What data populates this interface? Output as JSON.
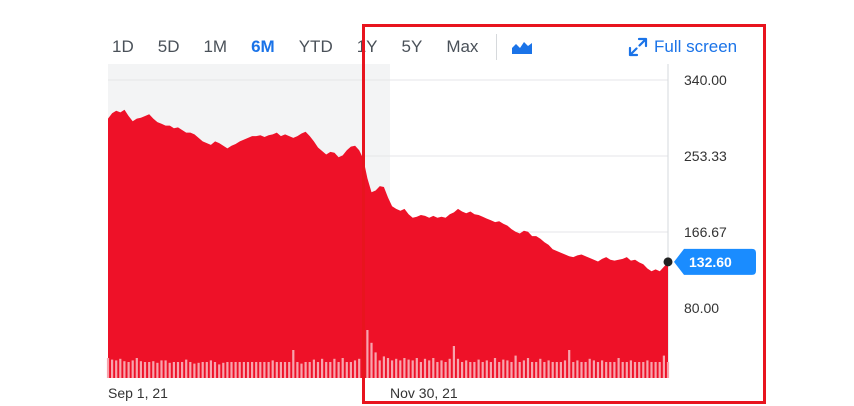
{
  "range_buttons": [
    {
      "label": "1D",
      "active": false
    },
    {
      "label": "5D",
      "active": false
    },
    {
      "label": "1M",
      "active": false
    },
    {
      "label": "6M",
      "active": true
    },
    {
      "label": "YTD",
      "active": false
    },
    {
      "label": "1Y",
      "active": false
    },
    {
      "label": "5Y",
      "active": false
    },
    {
      "label": "Max",
      "active": false
    }
  ],
  "chart_type_icon": "area-chart-icon",
  "fullscreen": {
    "label": "Full screen",
    "icon": "expand-icon"
  },
  "colors": {
    "area": "#ee1128",
    "accent": "#1a73e8",
    "price_tag": "#1a8cff",
    "highlight": "#e8141e"
  },
  "chart_data": {
    "type": "area",
    "y_ticks": [
      "340.00",
      "253.33",
      "166.67",
      "80.00"
    ],
    "y_tick_values": [
      340,
      253.33,
      166.67,
      80
    ],
    "x_labels": [
      "Sep 1, 21",
      "Nov 30, 21"
    ],
    "current_price": {
      "label": "132.60",
      "value": 132.6
    },
    "series": [
      {
        "values": [
          296,
          302,
          305,
          303,
          306,
          299,
          293,
          296,
          297,
          299,
          301,
          296,
          292,
          290,
          288,
          288,
          285,
          286,
          283,
          280,
          280,
          278,
          274,
          270,
          268,
          266,
          270,
          268,
          265,
          262,
          265,
          267,
          270,
          272,
          274,
          276,
          276,
          277,
          275,
          277,
          278,
          280,
          276,
          278,
          276,
          274,
          276,
          279,
          281,
          276,
          270,
          263,
          259,
          255,
          258,
          257,
          252,
          254,
          260,
          264,
          265,
          260,
          250,
          228,
          212,
          214,
          219,
          218,
          206,
          196,
          193,
          191,
          193,
          187,
          183,
          184,
          186,
          185,
          183,
          185,
          183,
          184,
          183,
          187,
          189,
          193,
          190,
          188,
          190,
          187,
          186,
          184,
          182,
          180,
          178,
          179,
          176,
          174,
          170,
          167,
          165,
          168,
          167,
          162,
          162,
          159,
          155,
          152,
          147,
          145,
          143,
          141,
          139,
          138,
          140,
          141,
          139,
          137,
          135,
          133,
          136,
          138,
          135,
          134,
          135,
          136,
          138,
          134,
          135,
          132,
          130,
          125,
          122,
          124,
          122,
          127,
          132
        ],
        "volume_pct": [
          0.25,
          0.23,
          0.22,
          0.24,
          0.21,
          0.2,
          0.22,
          0.25,
          0.21,
          0.2,
          0.2,
          0.21,
          0.19,
          0.22,
          0.22,
          0.19,
          0.2,
          0.2,
          0.2,
          0.23,
          0.2,
          0.18,
          0.19,
          0.2,
          0.2,
          0.22,
          0.2,
          0.17,
          0.19,
          0.2,
          0.2,
          0.2,
          0.2,
          0.2,
          0.2,
          0.2,
          0.2,
          0.2,
          0.2,
          0.2,
          0.22,
          0.2,
          0.2,
          0.2,
          0.2,
          0.35,
          0.2,
          0.18,
          0.2,
          0.2,
          0.23,
          0.2,
          0.24,
          0.2,
          0.2,
          0.24,
          0.2,
          0.25,
          0.2,
          0.2,
          0.22,
          0.24,
          0.2,
          0.6,
          0.44,
          0.32,
          0.22,
          0.27,
          0.25,
          0.22,
          0.24,
          0.22,
          0.25,
          0.23,
          0.22,
          0.25,
          0.2,
          0.24,
          0.22,
          0.25,
          0.2,
          0.22,
          0.2,
          0.24,
          0.4,
          0.24,
          0.2,
          0.22,
          0.2,
          0.2,
          0.23,
          0.2,
          0.22,
          0.2,
          0.25,
          0.2,
          0.23,
          0.22,
          0.2,
          0.28,
          0.2,
          0.22,
          0.25,
          0.2,
          0.2,
          0.24,
          0.2,
          0.22,
          0.2,
          0.2,
          0.2,
          0.22,
          0.35,
          0.2,
          0.22,
          0.2,
          0.2,
          0.24,
          0.22,
          0.2,
          0.22,
          0.2,
          0.2,
          0.2,
          0.25,
          0.2,
          0.2,
          0.22,
          0.2,
          0.2,
          0.2,
          0.22,
          0.2,
          0.2,
          0.2,
          0.28,
          0.2
        ]
      }
    ]
  }
}
